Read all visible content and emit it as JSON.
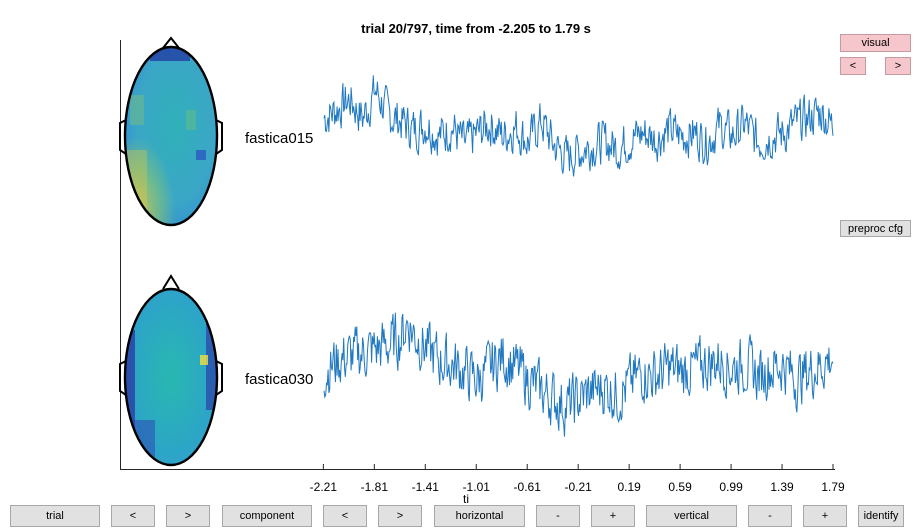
{
  "title": "trial 20/797, time from -2.205 to 1.79 s",
  "channels": [
    "fastica015",
    "fastica030"
  ],
  "x_ticks": [
    "-2.21",
    "-1.81",
    "-1.41",
    "-1.01",
    "-0.61",
    "-0.21",
    "0.19",
    "0.59",
    "0.99",
    "1.39",
    "1.79"
  ],
  "xlabel_fragment": "ti",
  "side_buttons": {
    "visual": "visual",
    "prev": "<",
    "next": ">",
    "preproc": "preproc cfg"
  },
  "bottom_buttons": {
    "trial": "trial",
    "trial_prev": "<",
    "trial_next": ">",
    "component": "component",
    "comp_prev": "<",
    "comp_next": ">",
    "horizontal": "horizontal",
    "h_minus": "-",
    "h_plus": "+",
    "vertical": "vertical",
    "v_minus": "-",
    "v_plus": "+",
    "identify": "identify"
  },
  "colors": {
    "trace": "#1f78c1",
    "pink_button": "#f5c6cb",
    "gray_button": "#e1e1e1"
  },
  "chart_data": {
    "type": "line",
    "title": "trial 20/797, time from -2.205 to 1.79 s",
    "xlim": [
      -2.205,
      1.79
    ],
    "x_ticks": [
      -2.21,
      -1.81,
      -1.41,
      -1.01,
      -0.61,
      -0.21,
      0.19,
      0.59,
      0.99,
      1.39,
      1.79
    ],
    "series": [
      {
        "name": "fastica015",
        "shape": [
          [
            -2.205,
            0.3
          ],
          [
            -2.1,
            0.6
          ],
          [
            -2.0,
            0.9
          ],
          [
            -1.9,
            0.3
          ],
          [
            -1.8,
            1.2
          ],
          [
            -1.7,
            0.4
          ],
          [
            -1.6,
            0.2
          ],
          [
            -1.5,
            -0.1
          ],
          [
            -1.4,
            0.1
          ],
          [
            -1.3,
            -0.3
          ],
          [
            -1.2,
            0.0
          ],
          [
            -1.1,
            -0.6
          ],
          [
            -1.0,
            -0.2
          ],
          [
            -0.9,
            0.1
          ],
          [
            -0.8,
            -0.3
          ],
          [
            -0.7,
            0.0
          ],
          [
            -0.6,
            -0.5
          ],
          [
            -0.5,
            0.2
          ],
          [
            -0.4,
            -0.6
          ],
          [
            -0.3,
            -1.0
          ],
          [
            -0.2,
            -0.8
          ],
          [
            -0.1,
            -0.6
          ],
          [
            0.0,
            -0.5
          ],
          [
            0.1,
            -0.7
          ],
          [
            0.2,
            -0.4
          ],
          [
            0.3,
            -0.2
          ],
          [
            0.4,
            -0.4
          ],
          [
            0.5,
            -0.1
          ],
          [
            0.6,
            -0.3
          ],
          [
            0.7,
            -0.2
          ],
          [
            0.8,
            -0.5
          ],
          [
            0.9,
            0.0
          ],
          [
            1.0,
            -0.3
          ],
          [
            1.1,
            0.1
          ],
          [
            1.2,
            -0.5
          ],
          [
            1.3,
            -0.3
          ],
          [
            1.4,
            -0.2
          ],
          [
            1.5,
            0.1
          ],
          [
            1.6,
            0.3
          ],
          [
            1.7,
            0.5
          ],
          [
            1.79,
            0.0
          ]
        ]
      },
      {
        "name": "fastica030",
        "shape": [
          [
            -2.205,
            -0.1
          ],
          [
            -2.1,
            0.2
          ],
          [
            -2.0,
            0.3
          ],
          [
            -1.9,
            0.4
          ],
          [
            -1.8,
            0.5
          ],
          [
            -1.7,
            0.6
          ],
          [
            -1.6,
            0.8
          ],
          [
            -1.55,
            1.2
          ],
          [
            -1.5,
            0.9
          ],
          [
            -1.4,
            0.5
          ],
          [
            -1.3,
            0.2
          ],
          [
            -1.2,
            0.1
          ],
          [
            -1.1,
            -0.1
          ],
          [
            -1.0,
            -0.3
          ],
          [
            -0.9,
            0.0
          ],
          [
            -0.8,
            0.3
          ],
          [
            -0.7,
            0.0
          ],
          [
            -0.6,
            -0.3
          ],
          [
            -0.5,
            -0.6
          ],
          [
            -0.4,
            -0.8
          ],
          [
            -0.3,
            -1.0
          ],
          [
            -0.2,
            -0.8
          ],
          [
            -0.1,
            -0.6
          ],
          [
            0.0,
            -0.5
          ],
          [
            0.1,
            -0.7
          ],
          [
            0.2,
            -0.4
          ],
          [
            0.3,
            -0.1
          ],
          [
            0.4,
            -0.2
          ],
          [
            0.5,
            0.0
          ],
          [
            0.6,
            -0.1
          ],
          [
            0.7,
            0.0
          ],
          [
            0.8,
            0.1
          ],
          [
            0.9,
            0.2
          ],
          [
            1.0,
            0.0
          ],
          [
            1.1,
            0.1
          ],
          [
            1.2,
            -0.2
          ],
          [
            1.3,
            0.0
          ],
          [
            1.4,
            0.1
          ],
          [
            1.5,
            -0.3
          ],
          [
            1.6,
            -0.1
          ],
          [
            1.7,
            0.1
          ],
          [
            1.79,
            0.3
          ]
        ]
      }
    ]
  }
}
